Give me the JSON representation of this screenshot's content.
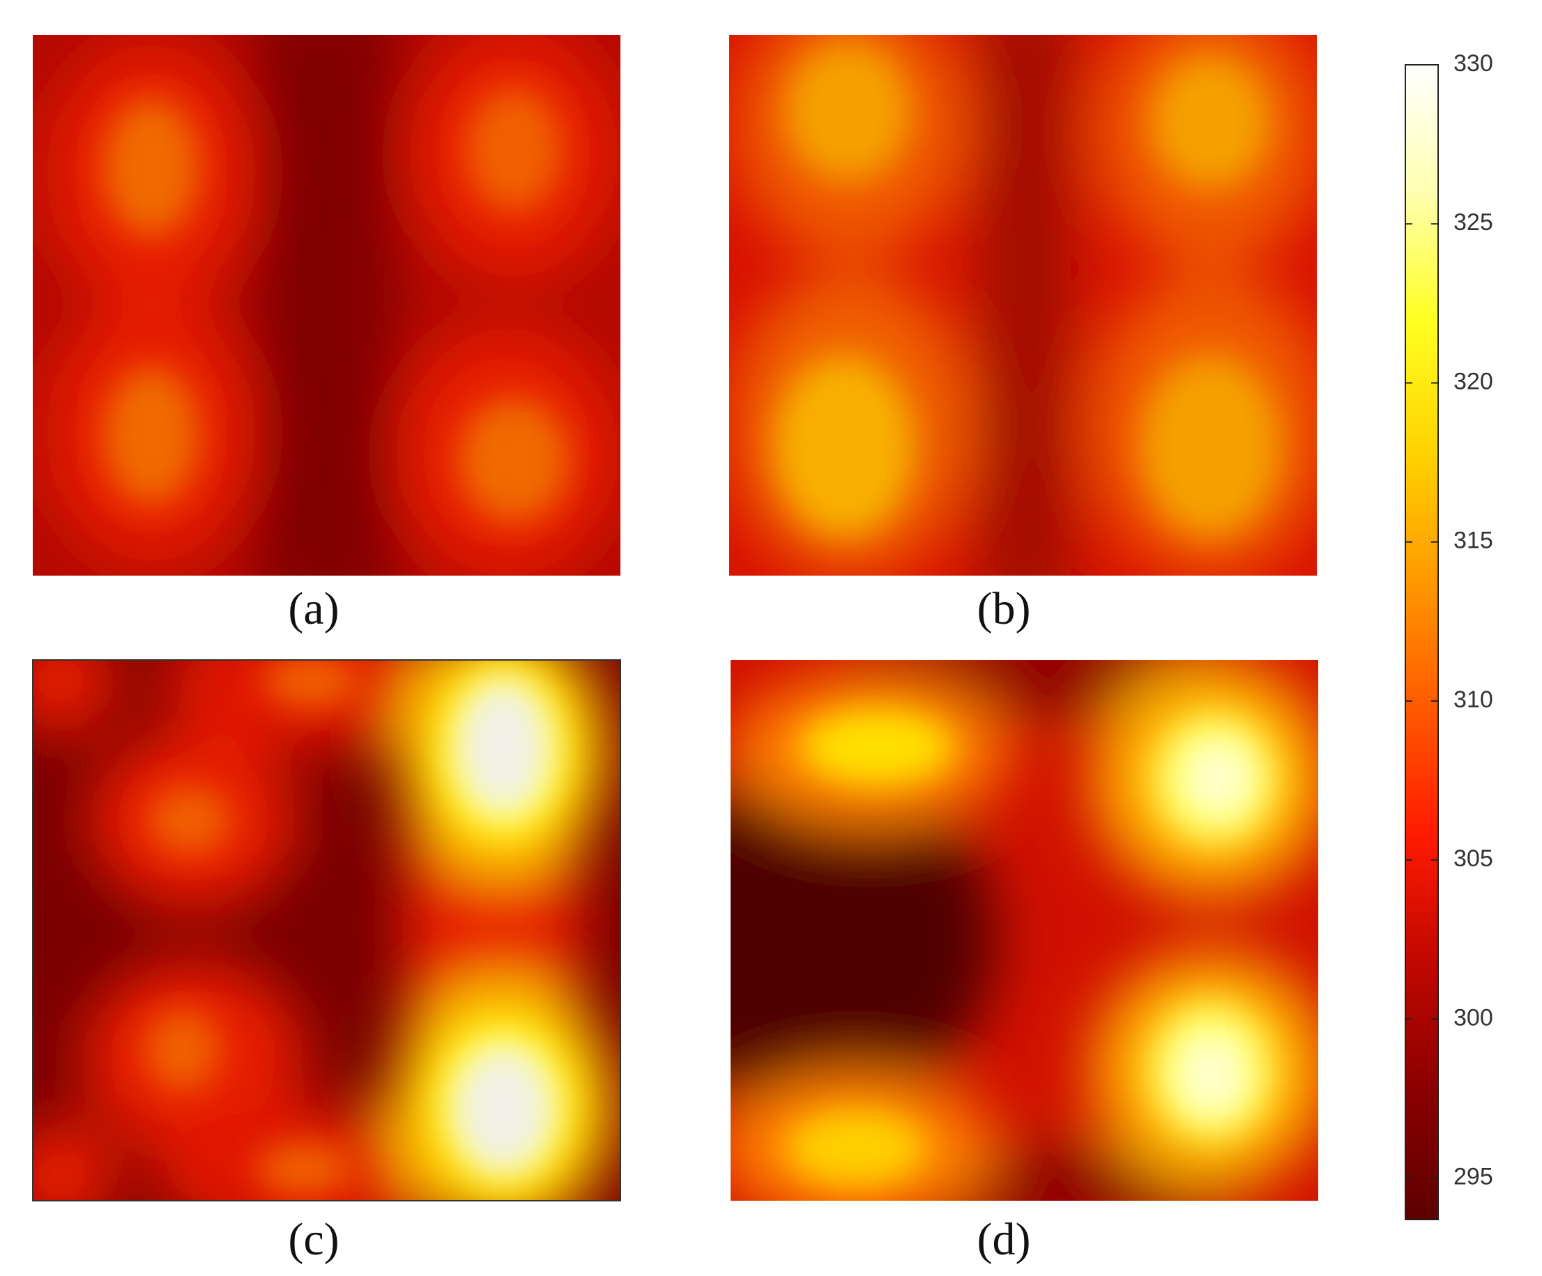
{
  "chart_data": {
    "type": "heatmap",
    "panels": [
      {
        "label": "(a)"
      },
      {
        "label": "(b)"
      },
      {
        "label": "(c)"
      },
      {
        "label": "(d)"
      }
    ],
    "colorbar": {
      "clim": [
        293.7,
        330
      ],
      "ticks": [
        295,
        300,
        305,
        310,
        315,
        320,
        325,
        330
      ],
      "colormap": [
        "#5e0000",
        "#8a0000",
        "#c00800",
        "#ff1a00",
        "#ff5a00",
        "#ff9a00",
        "#ffd400",
        "#ffff20",
        "#ffffb0",
        "#ffffff"
      ]
    }
  }
}
